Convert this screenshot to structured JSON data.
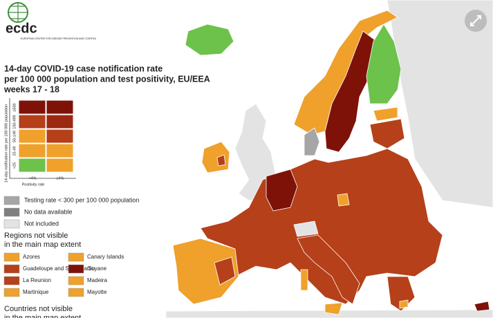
{
  "logo": {
    "name": "ecdc",
    "subtitle": "EUROPEAN CENTRE FOR DISEASE PREVENTION AND CONTROL"
  },
  "title": [
    "14-day COVID-19 case notification rate",
    "per 100 000 population and test positivity, EU/EEA",
    "weeks 17 - 18"
  ],
  "matrix": {
    "y_label": "14-day notification rate per 100 000 population",
    "x_label": "Positivity rate",
    "rows": [
      "≥500",
      "150-499",
      "50-149",
      "25-49",
      "<25"
    ],
    "columns": [
      "<4%",
      "≥4%"
    ],
    "colors": [
      [
        "#7e1209",
        "#7e1209"
      ],
      [
        "#b5401a",
        "#9c2812"
      ],
      [
        "#efa12c",
        "#b5401a"
      ],
      [
        "#efa12c",
        "#efa12c"
      ],
      [
        "#6cc24a",
        "#efa12c"
      ]
    ]
  },
  "legend": [
    {
      "label": "Testing rate < 300 per 100 000 population",
      "color": "#a6a6a6"
    },
    {
      "label": "No data available",
      "color": "#7f7f7f"
    },
    {
      "label": "Not included",
      "color": "#e3e3e3"
    }
  ],
  "regions_heading": [
    "Regions not visible",
    "in the main map extent"
  ],
  "regions": [
    {
      "label": "Azores",
      "color": "#efa12c"
    },
    {
      "label": "Canary Islands",
      "color": "#efa12c"
    },
    {
      "label": "Guadeloupe and Saint Martin",
      "color": "#b5401a"
    },
    {
      "label": "Guyane",
      "color": "#7e1209"
    },
    {
      "label": "La Reunion",
      "color": "#b5401a"
    },
    {
      "label": "Madeira",
      "color": "#efa12c"
    },
    {
      "label": "Martinique",
      "color": "#efa12c"
    },
    {
      "label": "Mayotte",
      "color": "#efa12c"
    }
  ],
  "countries_heading": [
    "Countries not visible",
    "in the main map extent"
  ]
}
